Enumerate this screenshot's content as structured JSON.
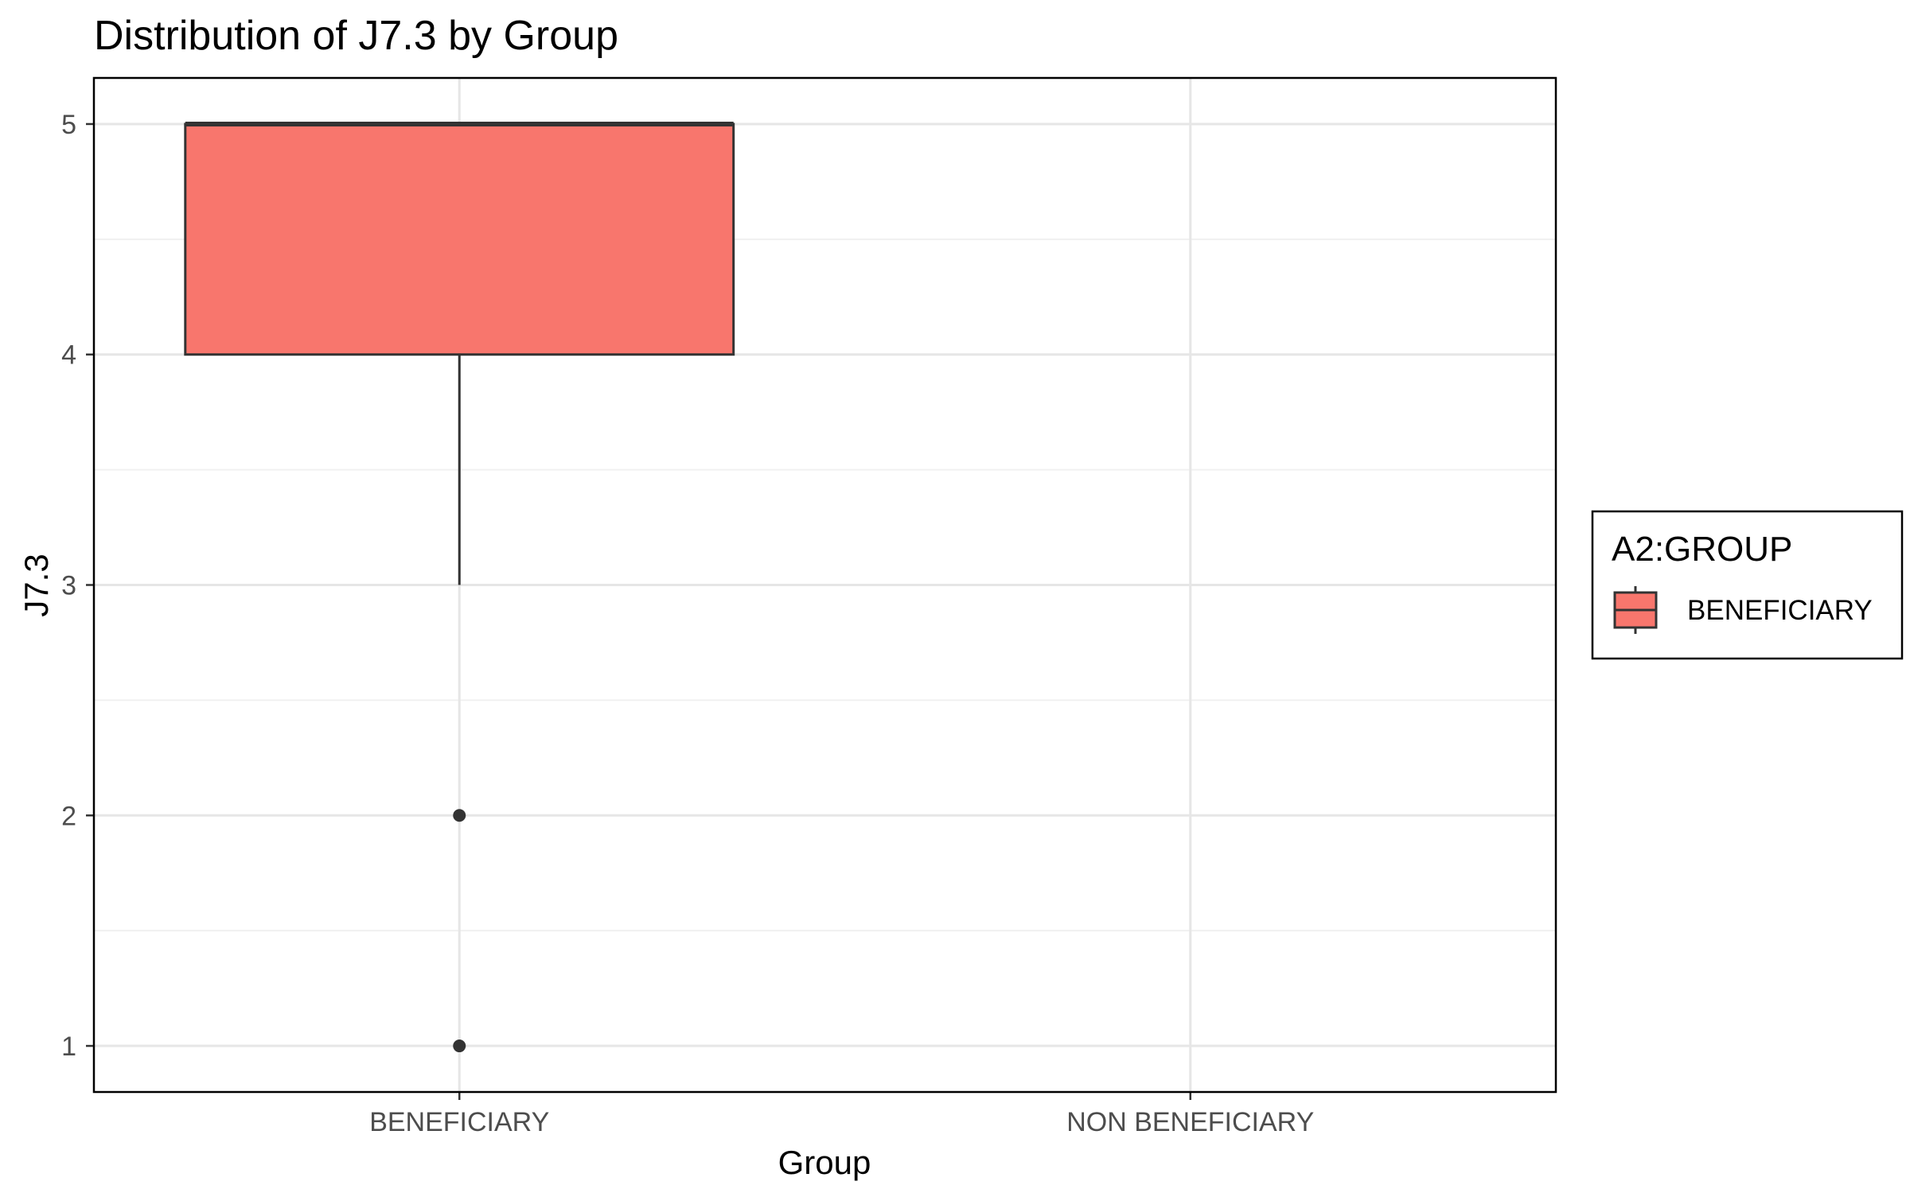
{
  "chart_data": {
    "type": "boxplot",
    "title": "Distribution of J7.3 by Group",
    "xlabel": "Group",
    "ylabel": "J7.3",
    "categories": [
      "BENEFICIARY",
      "NON BENEFICIARY"
    ],
    "ylim": [
      0.8,
      5.2
    ],
    "yticks": [
      1,
      2,
      3,
      4,
      5
    ],
    "grid": true,
    "boxes": [
      {
        "category": "BENEFICIARY",
        "whisker_low": 3,
        "q1": 4,
        "median": 5,
        "q3": 5,
        "whisker_high": 5,
        "outliers": [
          2,
          1
        ],
        "color": "#F8766D"
      }
    ],
    "legend": {
      "title": "A2:GROUP",
      "placement": "right",
      "entries": [
        {
          "label": "BENEFICIARY",
          "color": "#F8766D"
        }
      ]
    }
  }
}
